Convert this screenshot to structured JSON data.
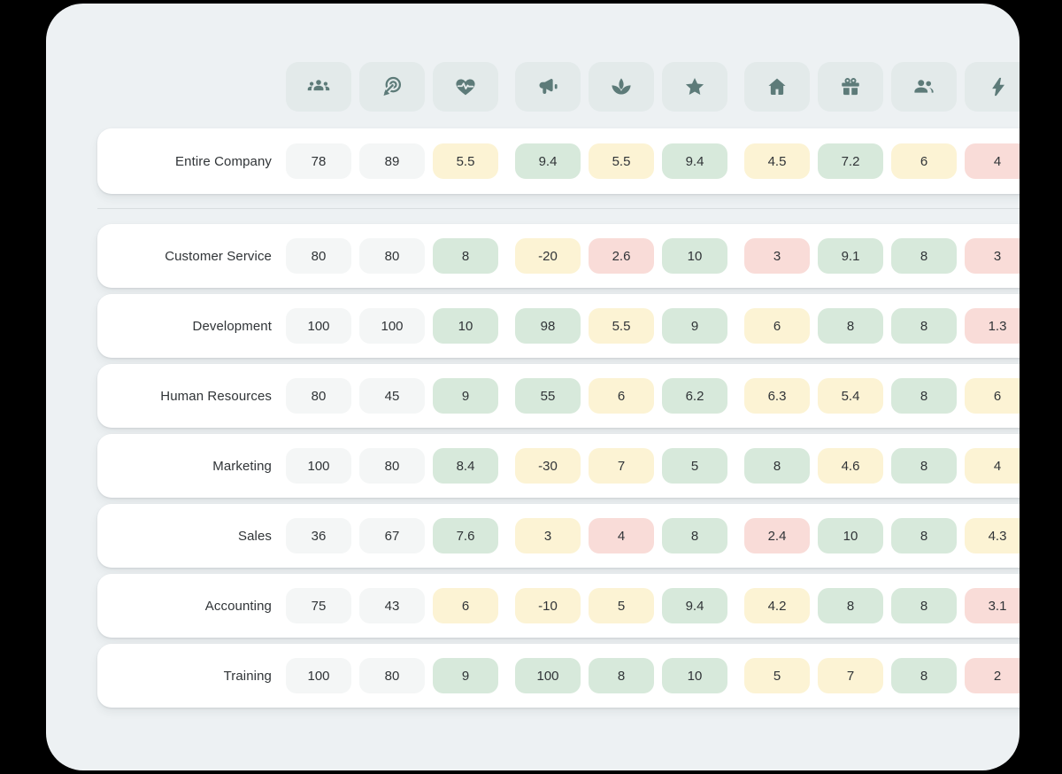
{
  "palette": {
    "background": "#000000",
    "surface": "#edf1f3",
    "chip": "#e3eaea",
    "icon": "#5d7b79",
    "card": "#ffffff",
    "divider": "#d9dee0",
    "text": "#303437",
    "cell_gray": "#f4f6f6",
    "cell_green": "#d7e9db",
    "cell_yellow": "#fcf3d4",
    "cell_red": "#f9dcd8"
  },
  "header": {
    "icons": [
      "groups-icon",
      "target-click-icon",
      "heart-pulse-icon",
      "megaphone-icon",
      "spa-icon",
      "star-icon",
      "home-icon",
      "gift-icon",
      "people-pair-icon",
      "bolt-icon"
    ]
  },
  "rows": [
    {
      "label": "Entire Company",
      "cells": [
        {
          "value": "78",
          "color": "gray"
        },
        {
          "value": "89",
          "color": "gray"
        },
        {
          "value": "5.5",
          "color": "yellow"
        },
        {
          "value": "9.4",
          "color": "green"
        },
        {
          "value": "5.5",
          "color": "yellow"
        },
        {
          "value": "9.4",
          "color": "green"
        },
        {
          "value": "4.5",
          "color": "yellow"
        },
        {
          "value": "7.2",
          "color": "green"
        },
        {
          "value": "6",
          "color": "yellow"
        },
        {
          "value": "4",
          "color": "red"
        }
      ]
    },
    {
      "label": "Customer Service",
      "cells": [
        {
          "value": "80",
          "color": "gray"
        },
        {
          "value": "80",
          "color": "gray"
        },
        {
          "value": "8",
          "color": "green"
        },
        {
          "value": "-20",
          "color": "yellow"
        },
        {
          "value": "2.6",
          "color": "red"
        },
        {
          "value": "10",
          "color": "green"
        },
        {
          "value": "3",
          "color": "red"
        },
        {
          "value": "9.1",
          "color": "green"
        },
        {
          "value": "8",
          "color": "green"
        },
        {
          "value": "3",
          "color": "red"
        }
      ]
    },
    {
      "label": "Development",
      "cells": [
        {
          "value": "100",
          "color": "gray"
        },
        {
          "value": "100",
          "color": "gray"
        },
        {
          "value": "10",
          "color": "green"
        },
        {
          "value": "98",
          "color": "green"
        },
        {
          "value": "5.5",
          "color": "yellow"
        },
        {
          "value": "9",
          "color": "green"
        },
        {
          "value": "6",
          "color": "yellow"
        },
        {
          "value": "8",
          "color": "green"
        },
        {
          "value": "8",
          "color": "green"
        },
        {
          "value": "1.3",
          "color": "red"
        }
      ]
    },
    {
      "label": "Human Resources",
      "cells": [
        {
          "value": "80",
          "color": "gray"
        },
        {
          "value": "45",
          "color": "gray"
        },
        {
          "value": "9",
          "color": "green"
        },
        {
          "value": "55",
          "color": "green"
        },
        {
          "value": "6",
          "color": "yellow"
        },
        {
          "value": "6.2",
          "color": "green"
        },
        {
          "value": "6.3",
          "color": "yellow"
        },
        {
          "value": "5.4",
          "color": "yellow"
        },
        {
          "value": "8",
          "color": "green"
        },
        {
          "value": "6",
          "color": "yellow"
        }
      ]
    },
    {
      "label": "Marketing",
      "cells": [
        {
          "value": "100",
          "color": "gray"
        },
        {
          "value": "80",
          "color": "gray"
        },
        {
          "value": "8.4",
          "color": "green"
        },
        {
          "value": "-30",
          "color": "yellow"
        },
        {
          "value": "7",
          "color": "yellow"
        },
        {
          "value": "5",
          "color": "green"
        },
        {
          "value": "8",
          "color": "green"
        },
        {
          "value": "4.6",
          "color": "yellow"
        },
        {
          "value": "8",
          "color": "green"
        },
        {
          "value": "4",
          "color": "yellow"
        }
      ]
    },
    {
      "label": "Sales",
      "cells": [
        {
          "value": "36",
          "color": "gray"
        },
        {
          "value": "67",
          "color": "gray"
        },
        {
          "value": "7.6",
          "color": "green"
        },
        {
          "value": "3",
          "color": "yellow"
        },
        {
          "value": "4",
          "color": "red"
        },
        {
          "value": "8",
          "color": "green"
        },
        {
          "value": "2.4",
          "color": "red"
        },
        {
          "value": "10",
          "color": "green"
        },
        {
          "value": "8",
          "color": "green"
        },
        {
          "value": "4.3",
          "color": "yellow"
        }
      ]
    },
    {
      "label": "Accounting",
      "cells": [
        {
          "value": "75",
          "color": "gray"
        },
        {
          "value": "43",
          "color": "gray"
        },
        {
          "value": "6",
          "color": "yellow"
        },
        {
          "value": "-10",
          "color": "yellow"
        },
        {
          "value": "5",
          "color": "yellow"
        },
        {
          "value": "9.4",
          "color": "green"
        },
        {
          "value": "4.2",
          "color": "yellow"
        },
        {
          "value": "8",
          "color": "green"
        },
        {
          "value": "8",
          "color": "green"
        },
        {
          "value": "3.1",
          "color": "red"
        }
      ]
    },
    {
      "label": "Training",
      "cells": [
        {
          "value": "100",
          "color": "gray"
        },
        {
          "value": "80",
          "color": "gray"
        },
        {
          "value": "9",
          "color": "green"
        },
        {
          "value": "100",
          "color": "green"
        },
        {
          "value": "8",
          "color": "green"
        },
        {
          "value": "10",
          "color": "green"
        },
        {
          "value": "5",
          "color": "yellow"
        },
        {
          "value": "7",
          "color": "yellow"
        },
        {
          "value": "8",
          "color": "green"
        },
        {
          "value": "2",
          "color": "red"
        }
      ]
    }
  ],
  "chart_data": {
    "type": "heatmap",
    "title": "",
    "row_labels": [
      "Entire Company",
      "Customer Service",
      "Development",
      "Human Resources",
      "Marketing",
      "Sales",
      "Accounting",
      "Training"
    ],
    "column_icons": [
      "groups",
      "target-click",
      "heart-pulse",
      "megaphone",
      "spa",
      "star",
      "home",
      "gift",
      "people-pair",
      "bolt"
    ],
    "values": [
      [
        78,
        89,
        5.5,
        9.4,
        5.5,
        9.4,
        4.5,
        7.2,
        6,
        4
      ],
      [
        80,
        80,
        8,
        -20,
        2.6,
        10,
        3,
        9.1,
        8,
        3
      ],
      [
        100,
        100,
        10,
        98,
        5.5,
        9,
        6,
        8,
        8,
        1.3
      ],
      [
        80,
        45,
        9,
        55,
        6,
        6.2,
        6.3,
        5.4,
        8,
        6
      ],
      [
        100,
        80,
        8.4,
        -30,
        7,
        5,
        8,
        4.6,
        8,
        4
      ],
      [
        36,
        67,
        7.6,
        3,
        4,
        8,
        2.4,
        10,
        8,
        4.3
      ],
      [
        75,
        43,
        6,
        -10,
        5,
        9.4,
        4.2,
        8,
        8,
        3.1
      ],
      [
        100,
        80,
        9,
        100,
        8,
        10,
        5,
        7,
        8,
        2
      ]
    ],
    "cell_color_classes": [
      [
        "gray",
        "gray",
        "yellow",
        "green",
        "yellow",
        "green",
        "yellow",
        "green",
        "yellow",
        "red"
      ],
      [
        "gray",
        "gray",
        "green",
        "yellow",
        "red",
        "green",
        "red",
        "green",
        "green",
        "red"
      ],
      [
        "gray",
        "gray",
        "green",
        "green",
        "yellow",
        "green",
        "yellow",
        "green",
        "green",
        "red"
      ],
      [
        "gray",
        "gray",
        "green",
        "green",
        "yellow",
        "green",
        "yellow",
        "yellow",
        "green",
        "yellow"
      ],
      [
        "gray",
        "gray",
        "green",
        "yellow",
        "yellow",
        "green",
        "green",
        "yellow",
        "green",
        "yellow"
      ],
      [
        "gray",
        "gray",
        "green",
        "yellow",
        "red",
        "green",
        "red",
        "green",
        "green",
        "yellow"
      ],
      [
        "gray",
        "gray",
        "yellow",
        "yellow",
        "yellow",
        "green",
        "yellow",
        "green",
        "green",
        "red"
      ],
      [
        "gray",
        "gray",
        "green",
        "green",
        "green",
        "green",
        "yellow",
        "yellow",
        "green",
        "red"
      ]
    ],
    "legend_position": "none",
    "grid": false,
    "notes": "First data row (Entire Company) separated from team rows by a horizontal divider; last column clipped at panel right edge"
  }
}
